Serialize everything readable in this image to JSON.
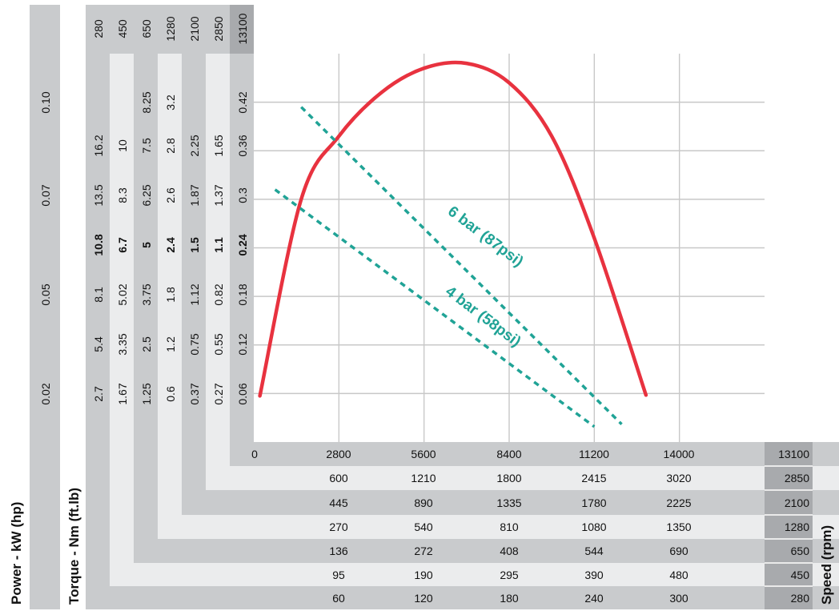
{
  "chart_data": {
    "type": "line",
    "title": "",
    "x_axis": {
      "label": "Speed (rpm)",
      "speed_column_values": [
        "13100",
        "2850",
        "2100",
        "1280",
        "650",
        "450",
        "280"
      ],
      "rows": [
        [
          "0",
          "2800",
          "5600",
          "8400",
          "11200",
          "14000"
        ],
        [
          "600",
          "1210",
          "1800",
          "2415",
          "3020"
        ],
        [
          "445",
          "890",
          "1335",
          "1780",
          "2225"
        ],
        [
          "270",
          "540",
          "810",
          "1080",
          "1350"
        ],
        [
          "136",
          "272",
          "408",
          "544",
          "690"
        ],
        [
          "95",
          "190",
          "295",
          "390",
          "480"
        ],
        [
          "60",
          "120",
          "180",
          "240",
          "300"
        ]
      ],
      "primary_ticks": [
        0,
        2800,
        5600,
        8400,
        11200,
        14000
      ],
      "range": [
        0,
        16800
      ]
    },
    "y_axis": {
      "torque_label": "Torque - Nm (ft.lb)",
      "power_label": "Power - kW (hp)",
      "speed_header": [
        "280",
        "450",
        "650",
        "1280",
        "2100",
        "2850",
        "13100"
      ],
      "torque_columns": [
        [
          "2.7",
          "5.4",
          "8.1",
          "10.8",
          "13.5",
          "16.2"
        ],
        [
          "1.67",
          "3.35",
          "5.02",
          "6.7",
          "8.3",
          "10"
        ],
        [
          "1.25",
          "2.5",
          "3.75",
          "5",
          "6.25",
          "7.5",
          "8.25"
        ],
        [
          "0.6",
          "1.2",
          "1.8",
          "2.4",
          "2.6",
          "2.8",
          "3.2"
        ],
        [
          "0.37",
          "0.75",
          "1.12",
          "1.5",
          "1.87",
          "2.25"
        ],
        [
          "0.27",
          "0.55",
          "0.82",
          "1.1",
          "1.37",
          "1.65"
        ],
        [
          "0.06",
          "0.12",
          "0.18",
          "0.24",
          "0.3",
          "0.36",
          "0.42"
        ]
      ],
      "power_values": [
        "0.02",
        "0.05",
        "0.07",
        "0.10"
      ],
      "primary_ticks": [
        0,
        0.06,
        0.12,
        0.18,
        0.24,
        0.3,
        0.36,
        0.42
      ],
      "range": [
        0,
        0.48
      ]
    },
    "grid": true,
    "series": [
      {
        "type": "power-curve",
        "color": "#e8323f",
        "points": [
          [
            200,
            0.057
          ],
          [
            1560,
            0.3
          ],
          [
            2800,
            0.378
          ],
          [
            4200,
            0.432
          ],
          [
            5600,
            0.462
          ],
          [
            7000,
            0.468
          ],
          [
            8400,
            0.444
          ],
          [
            9800,
            0.378
          ],
          [
            11200,
            0.252
          ],
          [
            12900,
            0.058
          ]
        ]
      },
      {
        "name": "6 bar (87psi)",
        "type": "torque-line",
        "color": "#20a396",
        "points": [
          [
            1560,
            0.414
          ],
          [
            12100,
            0.022
          ]
        ]
      },
      {
        "name": "4 bar (58psi)",
        "type": "torque-line",
        "color": "#20a396",
        "points": [
          [
            700,
            0.312
          ],
          [
            11200,
            0.019
          ]
        ]
      }
    ]
  }
}
